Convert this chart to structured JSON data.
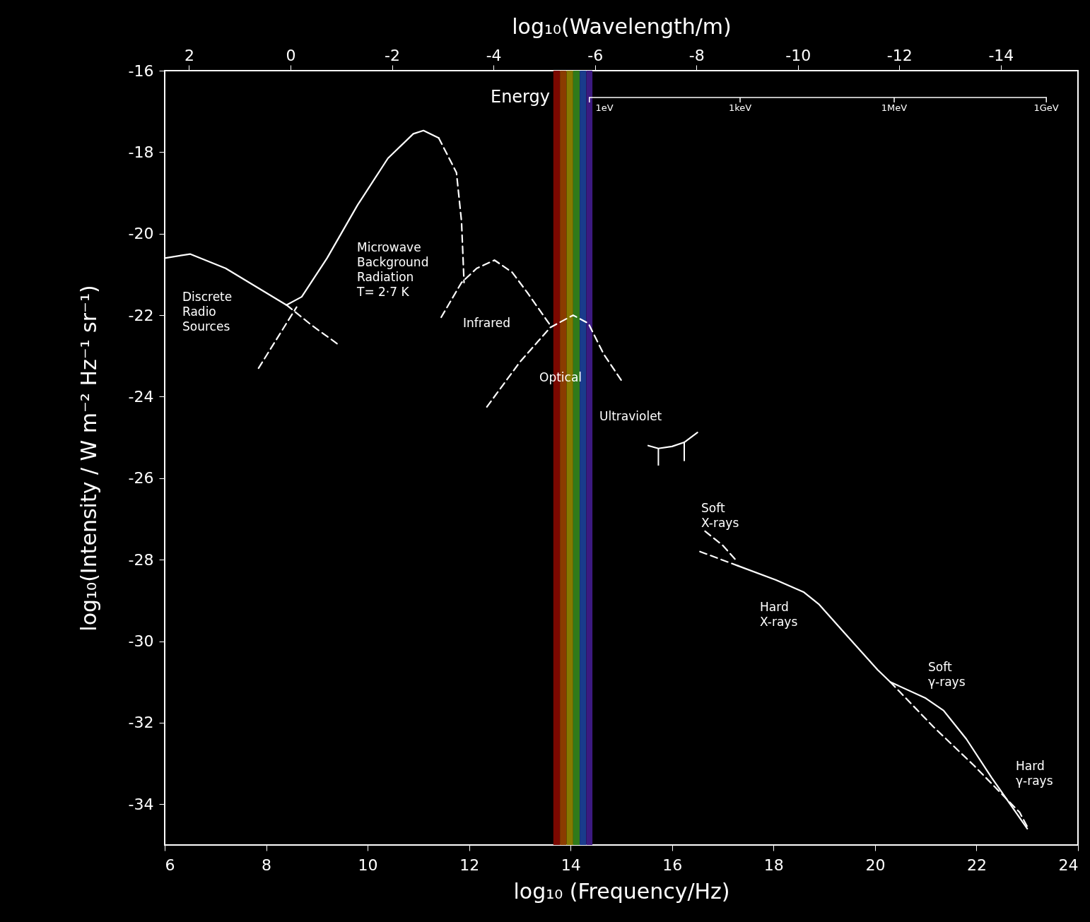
{
  "chart_data": {
    "type": "line",
    "xlabel": "log₁₀ (Frequency/Hz)",
    "ylabel": "log₁₀(Intensity / W m⁻² Hz⁻¹ sr⁻¹)",
    "x2label": "log₁₀(Wavelength/m)",
    "xlim": [
      6,
      24
    ],
    "xticks": [
      6,
      8,
      10,
      12,
      14,
      16,
      18,
      20,
      22,
      24
    ],
    "ylim": [
      -35,
      -16
    ],
    "yticks": [
      -16,
      -18,
      -20,
      -22,
      -24,
      -26,
      -28,
      -30,
      -32,
      -34
    ],
    "x2lim": [
      2.48,
      -15.52
    ],
    "x2ticks": [
      2,
      0,
      -2,
      -4,
      -6,
      -8,
      -10,
      -12,
      -14
    ],
    "series": [
      {
        "color": "#ffffff",
        "line_style": "solid",
        "x": [
          6,
          6.5,
          7.2,
          7.8,
          8.4
        ],
        "values": [
          -20.6,
          -20.5,
          -20.85,
          -21.3,
          -21.75
        ]
      },
      {
        "color": "#ffffff",
        "line_style": "dashed",
        "x": [
          8.4,
          8.9,
          9.4
        ],
        "values": [
          -21.75,
          -22.25,
          -22.7
        ]
      },
      {
        "color": "#ffffff",
        "line_style": "dashed",
        "x": [
          7.85,
          8.2,
          8.6
        ],
        "values": [
          -23.3,
          -22.6,
          -21.8
        ]
      },
      {
        "color": "#ffffff",
        "line_style": "solid",
        "x": [
          8.4,
          8.7,
          9.2,
          9.8,
          10.4,
          10.9,
          11.1,
          11.4
        ],
        "values": [
          -21.75,
          -21.55,
          -20.6,
          -19.3,
          -18.15,
          -17.55,
          -17.47,
          -17.65
        ]
      },
      {
        "color": "#ffffff",
        "line_style": "dashed",
        "x": [
          11.4,
          11.75,
          11.85,
          11.9
        ],
        "values": [
          -17.65,
          -18.5,
          -19.7,
          -21.2
        ]
      },
      {
        "color": "#ffffff",
        "line_style": "dashed",
        "x": [
          11.45,
          11.85,
          12.15,
          12.5,
          12.85,
          13.15,
          13.6
        ],
        "values": [
          -22.05,
          -21.2,
          -20.85,
          -20.65,
          -20.95,
          -21.45,
          -22.25
        ]
      },
      {
        "color": "#ffffff",
        "line_style": "dashed",
        "x": [
          12.35,
          13.0,
          13.6,
          14.05,
          14.35,
          14.65,
          15.0
        ],
        "values": [
          -24.25,
          -23.15,
          -22.3,
          -22.0,
          -22.2,
          -22.95,
          -23.6
        ]
      },
      {
        "color": "#ffffff",
        "line_style": "solid",
        "x": [
          15.53,
          15.73,
          16.0,
          16.24,
          16.5
        ],
        "values": [
          -25.2,
          -25.27,
          -25.22,
          -25.12,
          -24.88
        ],
        "errors": [
          null,
          [
            -25.69,
            -25.27
          ],
          null,
          [
            -25.58,
            -25.12
          ],
          null
        ]
      },
      {
        "color": "#ffffff",
        "line_style": "dashed",
        "x": [
          16.65,
          17.0,
          17.25
        ],
        "values": [
          -27.3,
          -27.65,
          -28.0
        ]
      },
      {
        "color": "#ffffff",
        "line_style": "dashed",
        "x": [
          16.55,
          17.3
        ],
        "values": [
          -27.8,
          -28.15
        ]
      },
      {
        "color": "#ffffff",
        "line_style": "solid",
        "x": [
          17.3,
          18.05,
          18.6,
          18.9,
          19.4,
          20.05,
          20.3,
          21.0,
          21.35,
          21.8,
          22.3,
          23.0
        ],
        "values": [
          -28.15,
          -28.5,
          -28.8,
          -29.1,
          -29.8,
          -30.7,
          -31.0,
          -31.4,
          -31.7,
          -32.4,
          -33.35,
          -34.6
        ]
      },
      {
        "color": "#ffffff",
        "line_style": "dashed",
        "x": [
          20.3,
          21.15,
          21.95,
          22.85,
          23.0
        ],
        "values": [
          -31.0,
          -32.1,
          -33.05,
          -34.2,
          -34.55
        ]
      }
    ],
    "bands": [
      {
        "axis": "x",
        "from": 13.66,
        "to": 13.79,
        "color": "#7a0800"
      },
      {
        "axis": "x",
        "from": 13.79,
        "to": 13.92,
        "color": "#8a3c00"
      },
      {
        "axis": "x",
        "from": 13.92,
        "to": 14.05,
        "color": "#857a00"
      },
      {
        "axis": "x",
        "from": 14.05,
        "to": 14.18,
        "color": "#2f7a1a"
      },
      {
        "axis": "x",
        "from": 14.18,
        "to": 14.31,
        "color": "#1a3c8c"
      },
      {
        "axis": "x",
        "from": 14.31,
        "to": 14.43,
        "color": "#3c1a80"
      }
    ],
    "annotations": [
      "Discrete\nRadio\nSources",
      "Microwave\nBackground\nRadiation\n  T= 2·7 K",
      "Infrared",
      "Optical",
      "Ultraviolet",
      "Soft\nX-rays",
      "Hard\nX-rays",
      "Soft\nγ-rays",
      "Hard\nγ-rays",
      "Energy",
      "1eV",
      "1keV",
      "1MeV",
      "1GeV"
    ]
  }
}
